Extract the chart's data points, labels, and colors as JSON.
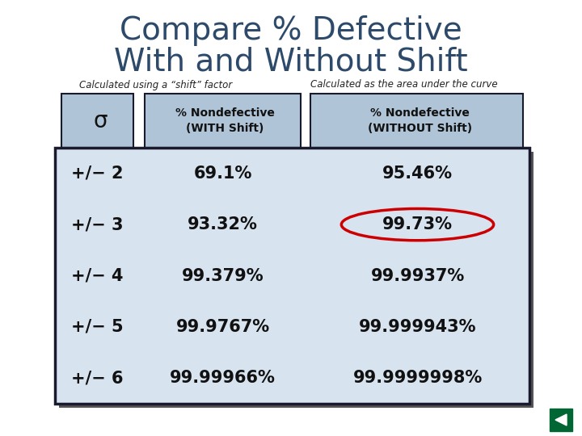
{
  "title_line1": "Compare % Defective",
  "title_line2": "With and Without Shift",
  "title_color": "#2E4A6B",
  "subtitle_left": "Calculated using a “shift” factor",
  "subtitle_right": "Calculated as the area under the curve",
  "col_header1": "σ",
  "col_header2": "% Nondefective\n(WITH Shift)",
  "col_header3": "% Nondefective\n(WITHOUT Shift)",
  "sigma_values": [
    "+/− 2",
    "+/− 3",
    "+/− 4",
    "+/− 5",
    "+/− 6"
  ],
  "with_shift": [
    "69.1%",
    "93.32%",
    "99.379%",
    "99.9767%",
    "99.99966%"
  ],
  "without_shift": [
    "95.46%",
    "99.73%",
    "99.9937%",
    "99.999943%",
    "99.9999998%"
  ],
  "highlight_row": 1,
  "bg_color": "#ffffff",
  "table_bg": "#d8e3f0",
  "header_bg": "#b0c4d8",
  "border_color": "#1a1a2e",
  "ellipse_color": "#cc0000",
  "nav_color": "#006633",
  "shadow_color": "#555555"
}
